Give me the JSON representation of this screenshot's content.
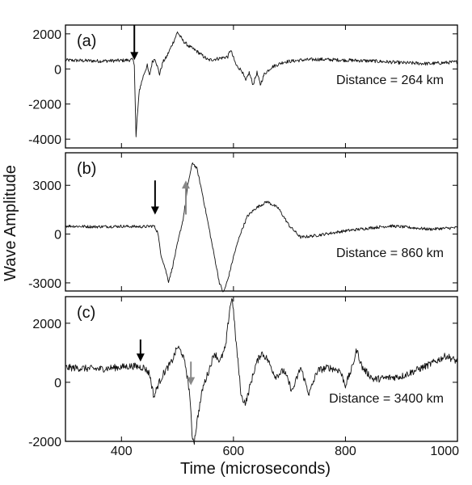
{
  "chart_data": {
    "type": "line",
    "xlabel": "Time (microseconds)",
    "ylabel": "Wave Amplitude",
    "xlim": [
      300,
      1000
    ],
    "x_ticks": [
      "400",
      "600",
      "800",
      "1000"
    ],
    "panels": [
      {
        "label": "(a)",
        "annotation": "Distance = 264 km",
        "ylim": [
          -4500,
          2500
        ],
        "y_ticks": [
          2000,
          0,
          -2000,
          -4000
        ],
        "y_tick_labels": [
          "2000",
          "0",
          "-2000",
          "-4000"
        ],
        "noise": 100,
        "trace": [
          [
            300,
            500
          ],
          [
            360,
            450
          ],
          [
            400,
            480
          ],
          [
            420,
            520
          ],
          [
            423,
            300
          ],
          [
            426,
            -3900
          ],
          [
            428,
            -2800
          ],
          [
            432,
            -1200
          ],
          [
            440,
            -300
          ],
          [
            446,
            200
          ],
          [
            450,
            -400
          ],
          [
            455,
            400
          ],
          [
            460,
            600
          ],
          [
            468,
            -300
          ],
          [
            474,
            400
          ],
          [
            480,
            650
          ],
          [
            485,
            1000
          ],
          [
            495,
            1700
          ],
          [
            500,
            2100
          ],
          [
            510,
            1600
          ],
          [
            520,
            1300
          ],
          [
            535,
            1000
          ],
          [
            555,
            500
          ],
          [
            575,
            600
          ],
          [
            590,
            700
          ],
          [
            595,
            1100
          ],
          [
            598,
            800
          ],
          [
            605,
            200
          ],
          [
            615,
            -100
          ],
          [
            622,
            -700
          ],
          [
            628,
            -200
          ],
          [
            635,
            -900
          ],
          [
            642,
            -200
          ],
          [
            648,
            -900
          ],
          [
            655,
            -300
          ],
          [
            668,
            100
          ],
          [
            690,
            400
          ],
          [
            720,
            500
          ],
          [
            750,
            550
          ],
          [
            800,
            500
          ],
          [
            850,
            450
          ],
          [
            900,
            350
          ],
          [
            950,
            300
          ],
          [
            1000,
            400
          ]
        ],
        "arrows": [
          {
            "x": 423,
            "y_from": 2500,
            "y_to": 500,
            "color": "#000000"
          }
        ]
      },
      {
        "label": "(b)",
        "annotation": "Distance = 860 km",
        "ylim": [
          -3500,
          5000
        ],
        "y_ticks": [
          3000,
          0,
          -3000
        ],
        "y_tick_labels": [
          "3000",
          "0",
          "-3000"
        ],
        "noise": 90,
        "trace": [
          [
            300,
            500
          ],
          [
            350,
            450
          ],
          [
            400,
            480
          ],
          [
            440,
            450
          ],
          [
            458,
            500
          ],
          [
            465,
            100
          ],
          [
            470,
            -1200
          ],
          [
            478,
            -2100
          ],
          [
            484,
            -2900
          ],
          [
            490,
            -2200
          ],
          [
            500,
            -600
          ],
          [
            510,
            900
          ],
          [
            520,
            3300
          ],
          [
            527,
            4400
          ],
          [
            535,
            4000
          ],
          [
            545,
            2400
          ],
          [
            555,
            600
          ],
          [
            565,
            -1200
          ],
          [
            575,
            -3000
          ],
          [
            582,
            -3600
          ],
          [
            590,
            -2800
          ],
          [
            600,
            -1400
          ],
          [
            612,
            0
          ],
          [
            625,
            1100
          ],
          [
            640,
            1600
          ],
          [
            660,
            2000
          ],
          [
            680,
            1600
          ],
          [
            700,
            500
          ],
          [
            720,
            -200
          ],
          [
            745,
            -100
          ],
          [
            800,
            200
          ],
          [
            850,
            400
          ],
          [
            880,
            500
          ],
          [
            900,
            450
          ],
          [
            950,
            300
          ],
          [
            1000,
            400
          ]
        ],
        "arrows": [
          {
            "x": 460,
            "y_from": 3300,
            "y_to": 1200,
            "color": "#000000"
          },
          {
            "x": 515,
            "y_from": 1200,
            "y_to": 3300,
            "color": "#888888"
          }
        ]
      },
      {
        "label": "(c)",
        "annotation": "Distance = 3400 km",
        "ylim": [
          -2000,
          2900
        ],
        "y_ticks": [
          2000,
          0,
          -2000
        ],
        "y_tick_labels": [
          "2000",
          "0",
          "-2000"
        ],
        "noise": 120,
        "trace": [
          [
            300,
            500
          ],
          [
            360,
            450
          ],
          [
            420,
            550
          ],
          [
            440,
            500
          ],
          [
            450,
            300
          ],
          [
            458,
            -500
          ],
          [
            465,
            -100
          ],
          [
            475,
            300
          ],
          [
            490,
            700
          ],
          [
            500,
            1200
          ],
          [
            508,
            1000
          ],
          [
            515,
            500
          ],
          [
            522,
            -400
          ],
          [
            526,
            -1800
          ],
          [
            530,
            -2000
          ],
          [
            536,
            -1200
          ],
          [
            545,
            -200
          ],
          [
            556,
            400
          ],
          [
            566,
            1000
          ],
          [
            576,
            700
          ],
          [
            586,
            1200
          ],
          [
            594,
            2600
          ],
          [
            598,
            2850
          ],
          [
            604,
            1500
          ],
          [
            614,
            -500
          ],
          [
            622,
            -700
          ],
          [
            630,
            -100
          ],
          [
            640,
            600
          ],
          [
            650,
            1000
          ],
          [
            660,
            800
          ],
          [
            675,
            200
          ],
          [
            690,
            400
          ],
          [
            705,
            -300
          ],
          [
            720,
            500
          ],
          [
            735,
            -400
          ],
          [
            750,
            400
          ],
          [
            770,
            500
          ],
          [
            790,
            400
          ],
          [
            800,
            -100
          ],
          [
            812,
            500
          ],
          [
            820,
            1100
          ],
          [
            830,
            500
          ],
          [
            850,
            100
          ],
          [
            900,
            200
          ],
          [
            950,
            600
          ],
          [
            980,
            900
          ],
          [
            1000,
            700
          ]
        ],
        "arrows": [
          {
            "x": 434,
            "y_from": 1450,
            "y_to": 700,
            "color": "#000000"
          },
          {
            "x": 524,
            "y_from": 700,
            "y_to": -100,
            "color": "#888888"
          }
        ]
      }
    ]
  }
}
